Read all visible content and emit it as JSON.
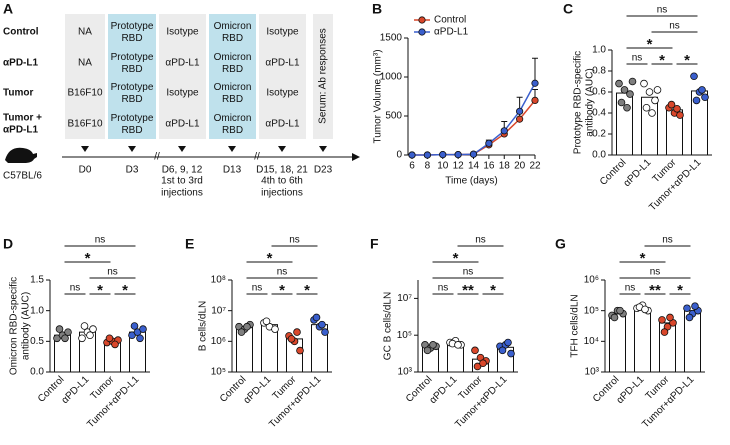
{
  "schematic": {
    "panel": "A",
    "rows": [
      "Control",
      "αPD-L1",
      "Tumor",
      "Tumor +",
      "αPD-L1"
    ],
    "cells": [
      [
        "NA",
        "Prototype RBD",
        "Isotype",
        "Omicron RBD",
        "Isotype"
      ],
      [
        "NA",
        "Prototype RBD",
        "αPD-L1",
        "Omicron RBD",
        "αPD-L1"
      ],
      [
        "B16F10",
        "Prototype RBD",
        "Isotype",
        "Omicron RBD",
        "Isotype"
      ],
      [
        "B16F10",
        "Prototype RBD",
        "αPD-L1",
        "Omicron RBD",
        "αPD-L1"
      ]
    ],
    "serum": "Serum: Ab responses",
    "timeline": [
      "D0",
      "D3",
      "D6, 9, 12",
      "D13",
      "D15, 18, 21",
      "D23"
    ],
    "injections": [
      "1st to 3rd",
      "injections",
      "4th to 6th",
      "injections"
    ],
    "mouse": "C57BL/6"
  },
  "chart_data": [
    {
      "type": "line",
      "panel": "B",
      "ylabel": "Tumor Volume (mm³)",
      "xlabel": "Time (days)",
      "x": [
        6,
        8,
        10,
        12,
        14,
        16,
        18,
        20,
        22
      ],
      "series": [
        {
          "name": "Control",
          "color": "#d9472b",
          "values": [
            0,
            0,
            5,
            5,
            10,
            130,
            270,
            460,
            700
          ],
          "errors": [
            0,
            0,
            3,
            3,
            5,
            30,
            60,
            90,
            140
          ]
        },
        {
          "name": "αPD-L1",
          "color": "#3a5fcd",
          "values": [
            0,
            0,
            5,
            5,
            10,
            150,
            310,
            560,
            920
          ],
          "errors": [
            0,
            0,
            3,
            3,
            5,
            40,
            120,
            180,
            320
          ]
        }
      ],
      "xlim": [
        6,
        22
      ],
      "xticks": [
        6,
        8,
        10,
        12,
        14,
        16,
        18,
        20,
        22
      ],
      "ylim": [
        0,
        1500
      ],
      "yticks": [
        0,
        500,
        1000,
        1500
      ],
      "legend": "upper left"
    },
    {
      "type": "dotbar",
      "panel": "C",
      "ylabel": [
        "Prototype RBD-specific",
        "antibody (AUC)"
      ],
      "categories": [
        "Control",
        "αPD-L1",
        "Tumor",
        "Tumor+αPD-L1"
      ],
      "colors": [
        "#7f7f7f",
        "#ffffff",
        "#d9472b",
        "#3a5fcd"
      ],
      "values": [
        0.59,
        0.55,
        0.43,
        0.61
      ],
      "points": [
        [
          0.68,
          0.62,
          0.58,
          0.5,
          0.45,
          0.7
        ],
        [
          0.68,
          0.6,
          0.52,
          0.45,
          0.4,
          0.62
        ],
        [
          0.45,
          0.4,
          0.38,
          0.48,
          0.44
        ],
        [
          0.75,
          0.6,
          0.55,
          0.52,
          0.62
        ]
      ],
      "ylim": [
        0,
        1
      ],
      "yticks": [
        {
          "value": 0,
          "label": "0.0"
        },
        0.2,
        0.4,
        0.6,
        0.8,
        {
          "value": 1,
          "label": "1.0"
        }
      ],
      "significance": [
        "ns",
        "*",
        "*",
        "*",
        "ns",
        "ns"
      ]
    },
    {
      "type": "dotbar",
      "panel": "D",
      "ylabel": [
        "Omicron RBD-specific",
        "antibody (AUC)"
      ],
      "categories": [
        "Control",
        "αPD-L1",
        "Tumor",
        "Tumor+αPD-L1"
      ],
      "colors": [
        "#7f7f7f",
        "#ffffff",
        "#d9472b",
        "#3a5fcd"
      ],
      "values": [
        0.6,
        0.65,
        0.5,
        0.65
      ],
      "points": [
        [
          0.55,
          0.6,
          0.65,
          0.7,
          0.55
        ],
        [
          0.55,
          0.65,
          0.7,
          0.75,
          0.6
        ],
        [
          0.48,
          0.5,
          0.52,
          0.55,
          0.45
        ],
        [
          0.6,
          0.65,
          0.7,
          0.75,
          0.55
        ]
      ],
      "ylim": [
        0,
        1.5
      ],
      "yticks": [
        {
          "value": 0,
          "label": "0.0"
        },
        0.5,
        {
          "value": 1,
          "label": "1.0"
        },
        1.5
      ],
      "significance": [
        "ns",
        "*",
        "*",
        "ns",
        "*",
        "ns"
      ]
    },
    {
      "type": "dotbar",
      "panel": "E",
      "ylabel": "B cells/dLN",
      "log": true,
      "categories": [
        "Control",
        "αPD-L1",
        "Tumor",
        "Tumor+αPD-L1"
      ],
      "colors": [
        "#7f7f7f",
        "#ffffff",
        "#d9472b",
        "#3a5fcd"
      ],
      "values": [
        3000000,
        3500000,
        1200000,
        3500000
      ],
      "points": [
        [
          3000000,
          2500000,
          3500000,
          2000000,
          3000000
        ],
        [
          4000000,
          3000000,
          2500000,
          4500000
        ],
        [
          1500000,
          1000000,
          500000,
          1200000,
          2000000
        ],
        [
          5000000,
          3000000,
          2000000,
          6000000,
          3500000
        ]
      ],
      "ylim": [
        100000,
        100000000
      ],
      "yticks": [
        {
          "value": 100000,
          "label": "10⁵"
        },
        {
          "value": 1000000,
          "label": "10⁶"
        },
        {
          "value": 10000000,
          "label": "10⁷"
        },
        {
          "value": 100000000,
          "label": "10⁸"
        }
      ],
      "significance": [
        "ns",
        "*",
        "*",
        "ns",
        "*",
        "ns"
      ]
    },
    {
      "type": "dotbar",
      "panel": "F",
      "ylabel": "GC B cells/dLN",
      "log": true,
      "categories": [
        "Control",
        "αPD-L1",
        "Tumor",
        "Tumor+αPD-L1"
      ],
      "colors": [
        "#7f7f7f",
        "#ffffff",
        "#d9472b",
        "#3a5fcd"
      ],
      "values": [
        25000,
        35000,
        5000,
        22000
      ],
      "points": [
        [
          30000,
          20000,
          25000,
          15000,
          30000
        ],
        [
          40000,
          50000,
          30000,
          35000,
          30000
        ],
        [
          15000,
          6000,
          4000,
          2000,
          3000
        ],
        [
          25000,
          30000,
          10000,
          15000,
          40000
        ]
      ],
      "ylim": [
        1000,
        100000000
      ],
      "yticks": [
        {
          "value": 1000,
          "label": "10³"
        },
        {
          "value": 100000,
          "label": "10⁵"
        },
        {
          "value": 10000000,
          "label": "10⁷"
        }
      ],
      "significance": [
        "ns",
        "**",
        "*",
        "ns",
        "*",
        "ns"
      ]
    },
    {
      "type": "dotbar",
      "panel": "G",
      "ylabel": "TFH cells/dLN",
      "log": true,
      "categories": [
        "Control",
        "αPD-L1",
        "Tumor",
        "Tumor+αPD-L1"
      ],
      "colors": [
        "#7f7f7f",
        "#ffffff",
        "#d9472b",
        "#3a5fcd"
      ],
      "values": [
        80000,
        120000,
        40000,
        100000
      ],
      "points": [
        [
          70000,
          100000,
          80000,
          60000,
          100000
        ],
        [
          120000,
          150000,
          100000,
          130000,
          110000
        ],
        [
          50000,
          30000,
          40000,
          20000,
          60000
        ],
        [
          120000,
          80000,
          100000,
          60000,
          140000
        ]
      ],
      "ylim": [
        1000,
        1000000
      ],
      "yticks": [
        {
          "value": 1000,
          "label": "10³"
        },
        {
          "value": 10000,
          "label": "10⁴"
        },
        {
          "value": 100000,
          "label": "10⁵"
        },
        {
          "value": 1000000,
          "label": "10⁶"
        }
      ],
      "significance": [
        "ns",
        "**",
        "*",
        "ns",
        "*",
        "ns"
      ]
    }
  ]
}
